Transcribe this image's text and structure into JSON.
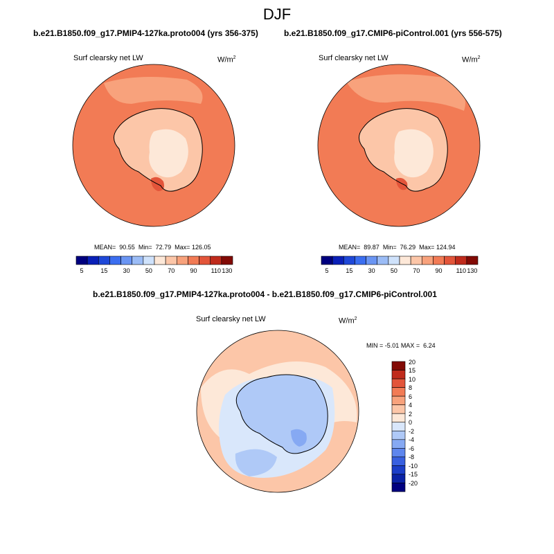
{
  "season": "DJF",
  "panels": [
    {
      "title": "b.e21.B1850.f09_g17.PMIP4-127ka.proto004 (yrs 356-375)",
      "variable": "Surf clearsky net LW",
      "units_base": "W/m",
      "units_exp": "2",
      "stats": {
        "mean_label": "MEAN=",
        "mean": "90.55",
        "min_label": "Min=",
        "min": "72.79",
        "max_label": "Max=",
        "max": "126.05"
      }
    },
    {
      "title": "b.e21.B1850.f09_g17.CMIP6-piControl.001 (yrs 556-575)",
      "variable": "Surf clearsky net LW",
      "units_base": "W/m",
      "units_exp": "2",
      "stats": {
        "mean_label": "MEAN=",
        "mean": "89.87",
        "min_label": "Min=",
        "min": "76.29",
        "max_label": "Max=",
        "max": "124.94"
      }
    }
  ],
  "diff_panel": {
    "title": "b.e21.B1850.f09_g17.PMIP4-127ka.proto004 - b.e21.B1850.f09_g17.CMIP6-piControl.001",
    "variable": "Surf clearsky net LW",
    "units_base": "W/m",
    "units_exp": "2",
    "stats": {
      "min_label": "MIN =",
      "min": "-5.01",
      "max_label": "MAX =",
      "max": "6.24"
    }
  },
  "abs_colorbar": {
    "colors": [
      "#00007f",
      "#0a20b8",
      "#1f48d8",
      "#3b6ef0",
      "#6a95f3",
      "#9bbcf6",
      "#cfe2fb",
      "#fde8d8",
      "#fcc6a8",
      "#f8a27c",
      "#f27b55",
      "#e3553a",
      "#c02b1c",
      "#820a05"
    ],
    "ticks": [
      "5",
      "15",
      "30",
      "50",
      "70",
      "90",
      "110",
      "130"
    ]
  },
  "diff_colorbar": {
    "colors": [
      "#820a05",
      "#c02b1c",
      "#e3553a",
      "#f27b55",
      "#f8a27c",
      "#fcc6a8",
      "#fde8d8",
      "#d9e7fb",
      "#afc9f7",
      "#86a9f3",
      "#5e86ee",
      "#3860e0",
      "#1b3ec8",
      "#0a22a6",
      "#00007f"
    ],
    "ticks": [
      "20",
      "15",
      "10",
      "8",
      "6",
      "4",
      "2",
      "0",
      "-2",
      "-4",
      "-6",
      "-8",
      "-10",
      "-15",
      "-20"
    ]
  },
  "map_colors": {
    "ocean_abs": "#f27b55",
    "ocean_abs_light": "#f8a27c",
    "land_abs": "#fcc6a8",
    "interior_abs": "#fde8d8",
    "hot_spot": "#e3553a",
    "hot_core": "#c02b1c",
    "diff_warm": "#fcc6a8",
    "diff_warm_light": "#fde8d8",
    "diff_cool_light": "#d9e7fb",
    "diff_cool": "#afc9f7",
    "diff_cooler": "#86a9f3"
  }
}
